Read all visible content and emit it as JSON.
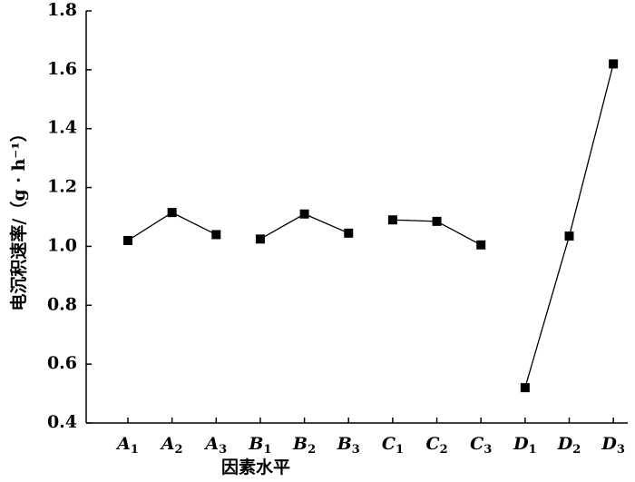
{
  "chart_data": {
    "type": "line",
    "x_label": "因素水平",
    "y_label": "电沉积速率/（g · h⁻¹）",
    "categories": [
      "A1",
      "A2",
      "A3",
      "B1",
      "B2",
      "B3",
      "C1",
      "C2",
      "C3",
      "D1",
      "D2",
      "D3"
    ],
    "series": [
      {
        "color": "#000000",
        "values": [
          1.02,
          1.115,
          1.04,
          null,
          null,
          null,
          null,
          null,
          null,
          null,
          null,
          null
        ]
      },
      {
        "color": "#000000",
        "values": [
          null,
          null,
          null,
          1.025,
          1.11,
          1.045,
          null,
          null,
          null,
          null,
          null,
          null
        ]
      },
      {
        "color": "#000000",
        "values": [
          null,
          null,
          null,
          null,
          null,
          null,
          1.09,
          1.085,
          1.005,
          null,
          null,
          null
        ]
      },
      {
        "color": "#000000",
        "values": [
          null,
          null,
          null,
          null,
          null,
          null,
          null,
          null,
          null,
          0.52,
          1.035,
          1.62
        ]
      }
    ],
    "ylim": [
      0.4,
      1.8
    ],
    "yticks": [
      0.4,
      0.6,
      0.8,
      {
        "value": 1,
        "label": "1.0"
      },
      1.2,
      1.4,
      1.6,
      1.8
    ]
  }
}
